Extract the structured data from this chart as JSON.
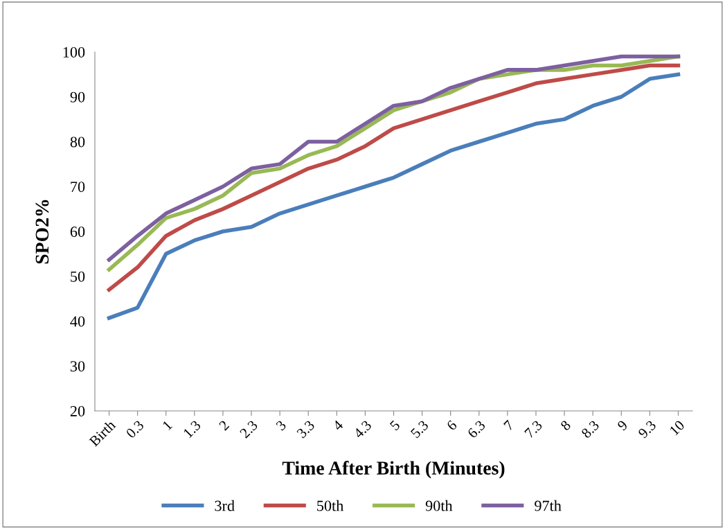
{
  "chart_data": {
    "type": "line",
    "xlabel": "Time After Birth (Minutes)",
    "ylabel": "SPO2%",
    "categories": [
      "Birth",
      "0.3",
      "1",
      "1.3",
      "2",
      "2.3",
      "3",
      "3.3",
      "4",
      "4.3",
      "5",
      "5.3",
      "6",
      "6.3",
      "7",
      "7.3",
      "8",
      "8.3",
      "9",
      "9.3",
      "10"
    ],
    "series": [
      {
        "name": "3rd",
        "color": "#4a7ebb",
        "values": [
          40.7,
          43,
          55,
          58,
          60,
          61,
          64,
          66,
          68,
          70,
          72,
          75,
          78,
          80,
          82,
          84,
          85,
          88,
          90,
          94,
          95
        ]
      },
      {
        "name": "50th",
        "color": "#be4b48",
        "values": [
          47,
          52,
          59,
          62.5,
          65,
          68,
          71,
          74,
          76,
          79,
          83,
          85,
          87,
          89,
          91,
          93,
          94,
          95,
          96,
          97,
          97
        ]
      },
      {
        "name": "90th",
        "color": "#98b954",
        "values": [
          51.5,
          57,
          63,
          65,
          68,
          73,
          74,
          77,
          79,
          83,
          87,
          89,
          91,
          94,
          95,
          96,
          96,
          97,
          97,
          98,
          99
        ]
      },
      {
        "name": "97th",
        "color": "#7d60a0",
        "values": [
          53.7,
          59,
          64,
          67,
          70,
          74,
          75,
          80,
          80,
          84,
          88,
          89,
          92,
          94,
          96,
          96,
          97,
          98,
          99,
          99,
          99
        ]
      }
    ],
    "ylim": [
      20,
      100
    ],
    "yticks": [
      20,
      30,
      40,
      50,
      60,
      70,
      80,
      90,
      100
    ],
    "grid": false,
    "legend": "bottom",
    "marker": "none",
    "line_style": "solid"
  }
}
